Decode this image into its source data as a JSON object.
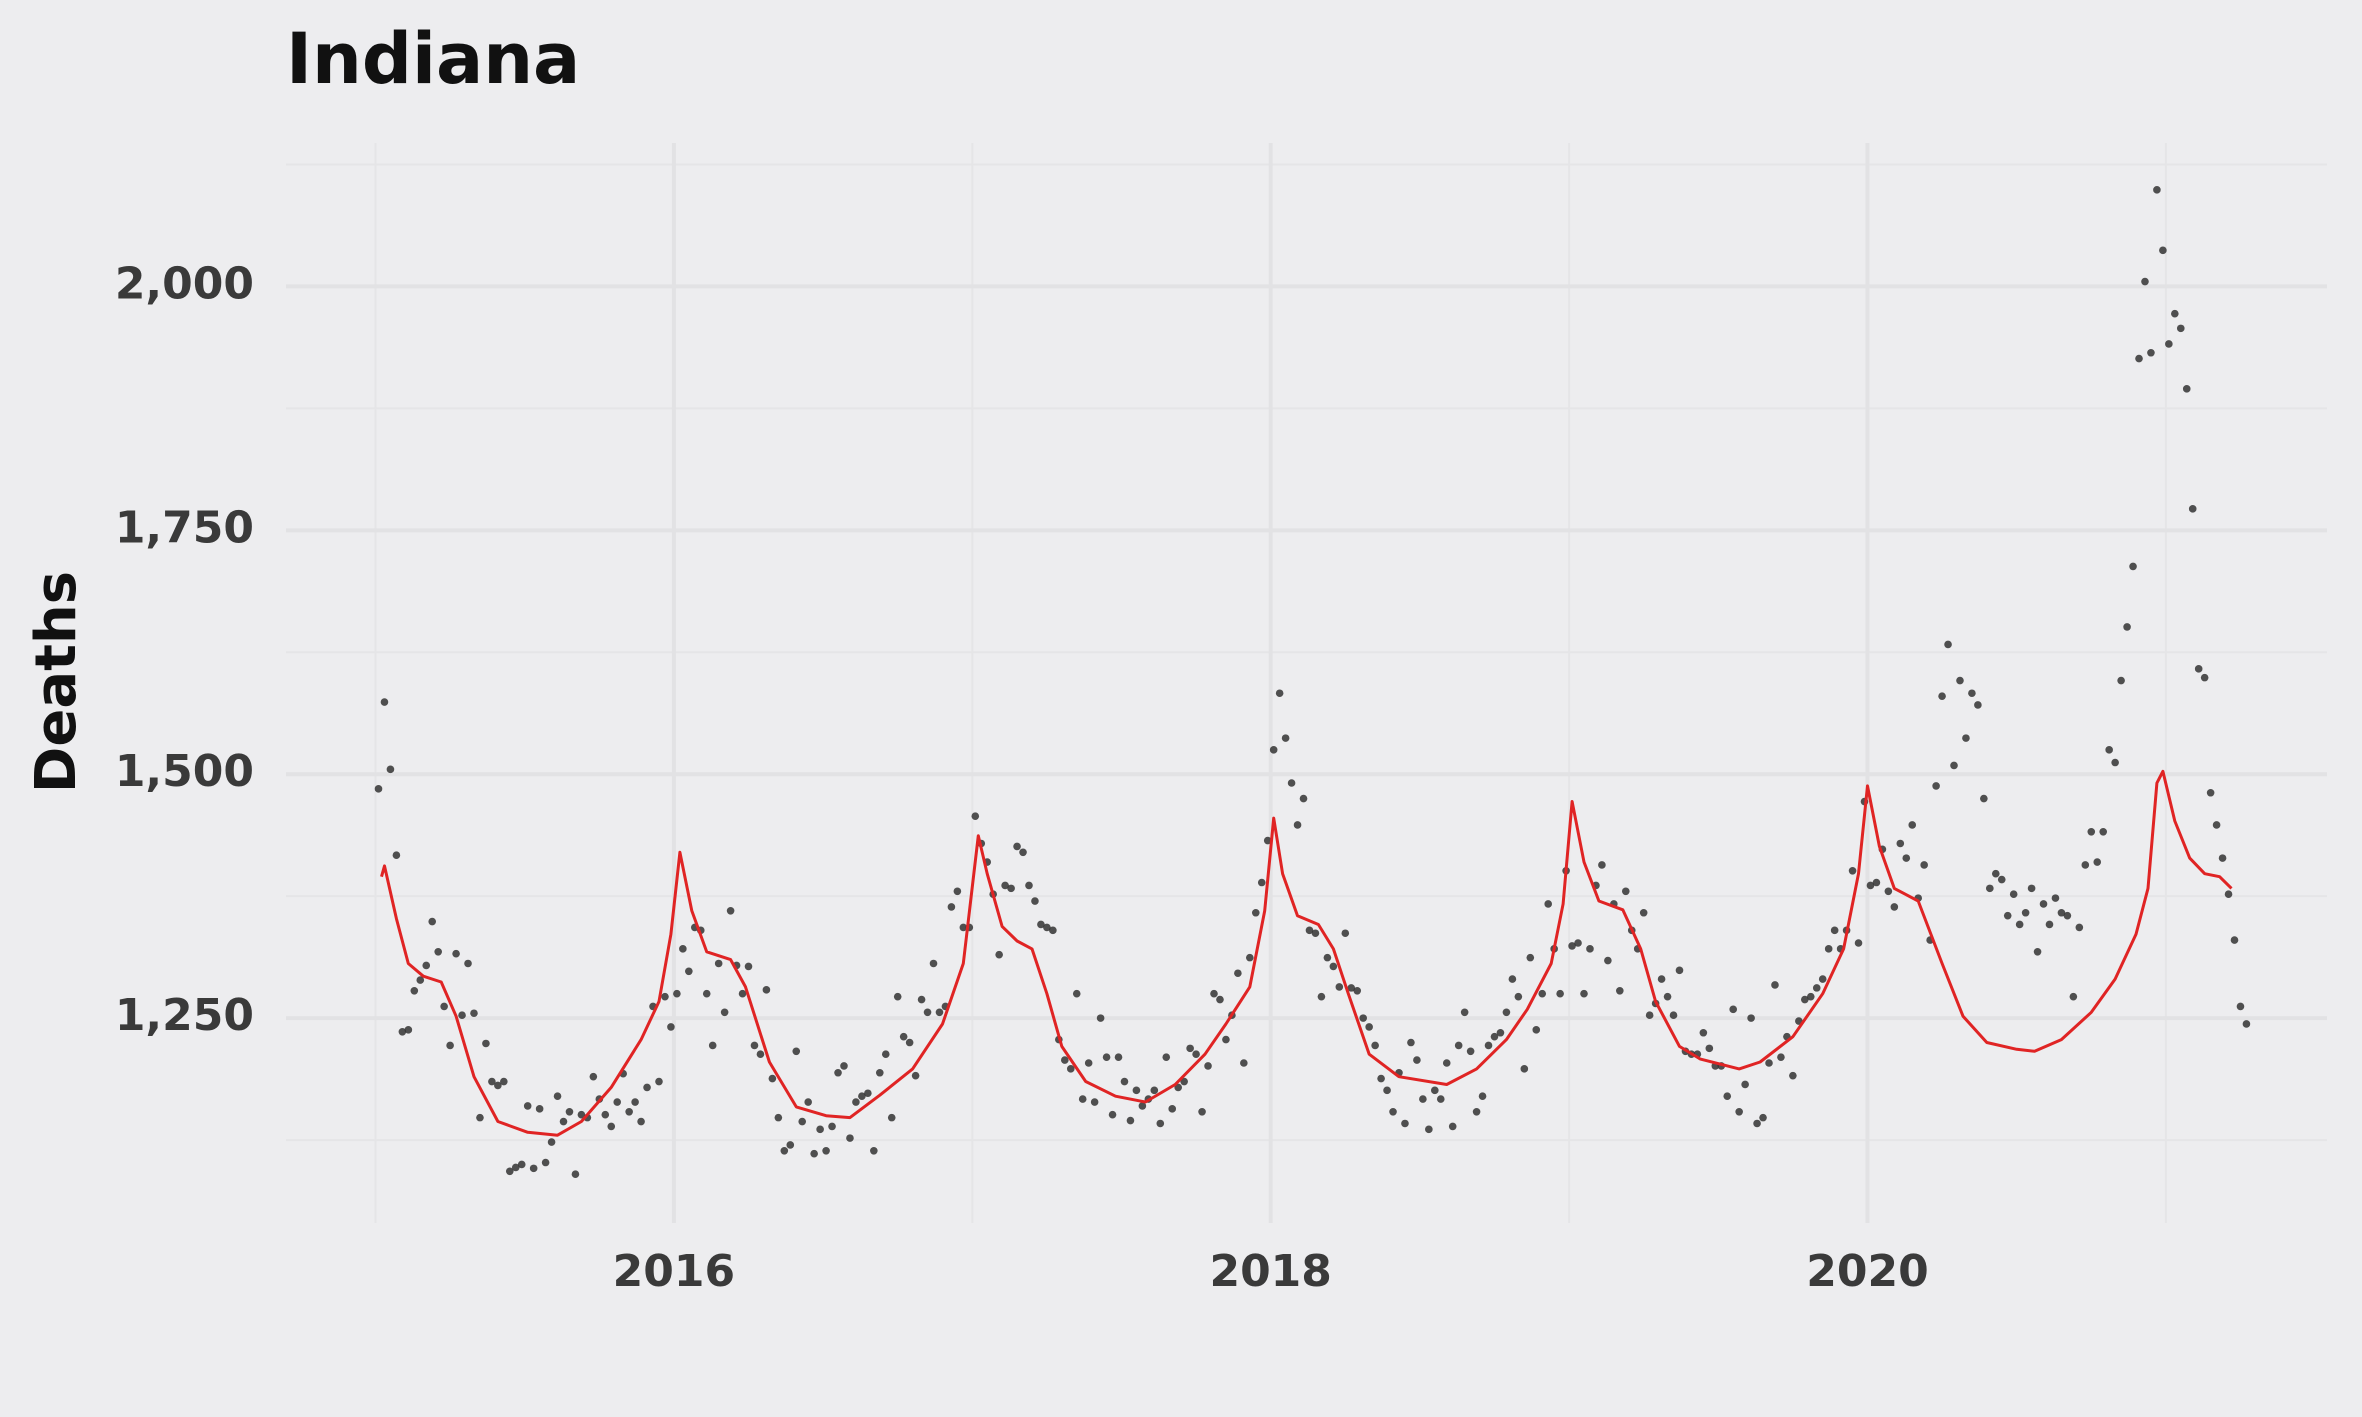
{
  "chart_data": {
    "type": "scatter",
    "title": "Indiana",
    "y_label": "Deaths",
    "xlim": [
      2014.7,
      2021.54
    ],
    "ylim": [
      1040,
      2147
    ],
    "xticks": [
      2016,
      2018,
      2020
    ],
    "yticks": [
      {
        "value": 1250,
        "label": "1,250"
      },
      {
        "value": 1500,
        "label": "1,500"
      },
      {
        "value": 1750,
        "label": "1,750"
      },
      {
        "value": 2000,
        "label": "2,000"
      }
    ],
    "xminor": [
      2015,
      2017,
      2019,
      2021
    ],
    "yminor": [
      1125,
      1375,
      1625,
      1875,
      2125
    ],
    "grid": true,
    "series": [
      {
        "type": "scatter",
        "color": "#333333",
        "x": [
          2015.01,
          2015.03,
          2015.05,
          2015.07,
          2015.09,
          2015.11,
          2015.13,
          2015.15,
          2015.17,
          2015.19,
          2015.21,
          2015.23,
          2015.25,
          2015.27,
          2015.29,
          2015.31,
          2015.33,
          2015.35,
          2015.37,
          2015.39,
          2015.41,
          2015.43,
          2015.45,
          2015.47,
          2015.49,
          2015.51,
          2015.53,
          2015.55,
          2015.57,
          2015.59,
          2015.61,
          2015.63,
          2015.65,
          2015.67,
          2015.69,
          2015.71,
          2015.73,
          2015.75,
          2015.77,
          2015.79,
          2015.81,
          2015.83,
          2015.85,
          2015.87,
          2015.89,
          2015.91,
          2015.93,
          2015.95,
          2015.97,
          2015.99,
          2016.01,
          2016.03,
          2016.05,
          2016.07,
          2016.09,
          2016.11,
          2016.13,
          2016.15,
          2016.17,
          2016.19,
          2016.21,
          2016.23,
          2016.25,
          2016.27,
          2016.29,
          2016.31,
          2016.33,
          2016.35,
          2016.37,
          2016.39,
          2016.41,
          2016.43,
          2016.45,
          2016.47,
          2016.49,
          2016.51,
          2016.53,
          2016.55,
          2016.57,
          2016.59,
          2016.61,
          2016.63,
          2016.65,
          2016.67,
          2016.69,
          2016.71,
          2016.73,
          2016.75,
          2016.77,
          2016.79,
          2016.81,
          2016.83,
          2016.85,
          2016.87,
          2016.89,
          2016.91,
          2016.93,
          2016.95,
          2016.97,
          2016.99,
          2017.01,
          2017.03,
          2017.05,
          2017.07,
          2017.09,
          2017.11,
          2017.13,
          2017.15,
          2017.17,
          2017.19,
          2017.21,
          2017.23,
          2017.25,
          2017.27,
          2017.29,
          2017.31,
          2017.33,
          2017.35,
          2017.37,
          2017.39,
          2017.41,
          2017.43,
          2017.45,
          2017.47,
          2017.49,
          2017.51,
          2017.53,
          2017.55,
          2017.57,
          2017.59,
          2017.61,
          2017.63,
          2017.65,
          2017.67,
          2017.69,
          2017.71,
          2017.73,
          2017.75,
          2017.77,
          2017.79,
          2017.81,
          2017.83,
          2017.85,
          2017.87,
          2017.89,
          2017.91,
          2017.93,
          2017.95,
          2017.97,
          2017.99,
          2018.01,
          2018.03,
          2018.05,
          2018.07,
          2018.09,
          2018.11,
          2018.13,
          2018.15,
          2018.17,
          2018.19,
          2018.21,
          2018.23,
          2018.25,
          2018.27,
          2018.29,
          2018.31,
          2018.33,
          2018.35,
          2018.37,
          2018.39,
          2018.41,
          2018.43,
          2018.45,
          2018.47,
          2018.49,
          2018.51,
          2018.53,
          2018.55,
          2018.57,
          2018.59,
          2018.61,
          2018.63,
          2018.65,
          2018.67,
          2018.69,
          2018.71,
          2018.73,
          2018.75,
          2018.77,
          2018.79,
          2018.81,
          2018.83,
          2018.85,
          2018.87,
          2018.89,
          2018.91,
          2018.93,
          2018.95,
          2018.97,
          2018.99,
          2019.01,
          2019.03,
          2019.05,
          2019.07,
          2019.09,
          2019.11,
          2019.13,
          2019.15,
          2019.17,
          2019.19,
          2019.21,
          2019.23,
          2019.25,
          2019.27,
          2019.29,
          2019.31,
          2019.33,
          2019.35,
          2019.37,
          2019.39,
          2019.41,
          2019.43,
          2019.45,
          2019.47,
          2019.49,
          2019.51,
          2019.53,
          2019.55,
          2019.57,
          2019.59,
          2019.61,
          2019.63,
          2019.65,
          2019.67,
          2019.69,
          2019.71,
          2019.73,
          2019.75,
          2019.77,
          2019.79,
          2019.81,
          2019.83,
          2019.85,
          2019.87,
          2019.89,
          2019.91,
          2019.93,
          2019.95,
          2019.97,
          2019.99,
          2020.01,
          2020.03,
          2020.05,
          2020.07,
          2020.09,
          2020.11,
          2020.13,
          2020.15,
          2020.17,
          2020.19,
          2020.21,
          2020.23,
          2020.25,
          2020.27,
          2020.29,
          2020.31,
          2020.33,
          2020.35,
          2020.37,
          2020.39,
          2020.41,
          2020.43,
          2020.45,
          2020.47,
          2020.49,
          2020.51,
          2020.53,
          2020.55,
          2020.57,
          2020.59,
          2020.61,
          2020.63,
          2020.65,
          2020.67,
          2020.69,
          2020.71,
          2020.73,
          2020.75,
          2020.77,
          2020.79,
          2020.81,
          2020.83,
          2020.85,
          2020.87,
          2020.89,
          2020.91,
          2020.93,
          2020.95,
          2020.97,
          2020.99,
          2021.01,
          2021.03,
          2021.05,
          2021.07,
          2021.09,
          2021.11,
          2021.13,
          2021.15,
          2021.17,
          2021.19,
          2021.21,
          2021.23,
          2021.25,
          2021.27
        ],
        "values": [
          1485,
          1574,
          1505,
          1417,
          1236,
          1238,
          1278,
          1289,
          1304,
          1349,
          1318,
          1262,
          1222,
          1316,
          1253,
          1306,
          1255,
          1148,
          1224,
          1185,
          1181,
          1185,
          1093,
          1097,
          1100,
          1160,
          1096,
          1157,
          1102,
          1123,
          1170,
          1144,
          1154,
          1090,
          1151,
          1148,
          1190,
          1167,
          1151,
          1139,
          1164,
          1193,
          1154,
          1164,
          1144,
          1179,
          1262,
          1185,
          1272,
          1241,
          1275,
          1321,
          1298,
          1343,
          1340,
          1275,
          1222,
          1306,
          1256,
          1360,
          1304,
          1275,
          1303,
          1222,
          1213,
          1279,
          1188,
          1148,
          1114,
          1120,
          1216,
          1144,
          1164,
          1111,
          1136,
          1114,
          1139,
          1194,
          1201,
          1127,
          1164,
          1170,
          1173,
          1114,
          1194,
          1213,
          1148,
          1272,
          1231,
          1225,
          1191,
          1269,
          1256,
          1306,
          1256,
          1262,
          1364,
          1380,
          1343,
          1343,
          1457,
          1429,
          1410,
          1377,
          1315,
          1386,
          1383,
          1426,
          1420,
          1386,
          1370,
          1346,
          1343,
          1340,
          1228,
          1207,
          1198,
          1275,
          1167,
          1204,
          1164,
          1250,
          1210,
          1151,
          1210,
          1185,
          1145,
          1176,
          1160,
          1167,
          1176,
          1142,
          1210,
          1157,
          1179,
          1185,
          1219,
          1213,
          1154,
          1201,
          1275,
          1269,
          1228,
          1253,
          1296,
          1204,
          1312,
          1358,
          1389,
          1432,
          1525,
          1583,
          1537,
          1491,
          1448,
          1475,
          1340,
          1337,
          1272,
          1312,
          1303,
          1282,
          1337,
          1281,
          1278,
          1250,
          1241,
          1222,
          1188,
          1176,
          1154,
          1194,
          1142,
          1225,
          1207,
          1167,
          1136,
          1176,
          1167,
          1204,
          1139,
          1222,
          1256,
          1216,
          1154,
          1170,
          1222,
          1231,
          1235,
          1256,
          1290,
          1272,
          1198,
          1312,
          1238,
          1275,
          1367,
          1321,
          1275,
          1401,
          1324,
          1327,
          1275,
          1321,
          1386,
          1407,
          1309,
          1367,
          1278,
          1380,
          1340,
          1321,
          1358,
          1253,
          1265,
          1290,
          1272,
          1253,
          1299,
          1216,
          1213,
          1213,
          1235,
          1219,
          1201,
          1201,
          1170,
          1259,
          1154,
          1182,
          1250,
          1142,
          1148,
          1204,
          1284,
          1210,
          1231,
          1191,
          1247,
          1269,
          1272,
          1281,
          1290,
          1321,
          1340,
          1321,
          1340,
          1401,
          1327,
          1472,
          1386,
          1389,
          1423,
          1380,
          1364,
          1429,
          1414,
          1448,
          1373,
          1407,
          1330,
          1488,
          1580,
          1633,
          1509,
          1596,
          1537,
          1583,
          1571,
          1475,
          1383,
          1398,
          1392,
          1355,
          1377,
          1346,
          1358,
          1383,
          1318,
          1367,
          1346,
          1373,
          1358,
          1355,
          1272,
          1343,
          1407,
          1441,
          1410,
          1441,
          1525,
          1512,
          1596,
          1651,
          1713,
          1926,
          2005,
          1932,
          2099,
          2037,
          1941,
          1972,
          1957,
          1895,
          1772,
          1608,
          1599,
          1481,
          1448,
          1414,
          1377,
          1330,
          1262,
          1244
        ]
      },
      {
        "type": "line",
        "color": "#e02424",
        "x": [
          2015.02,
          2015.03,
          2015.07,
          2015.11,
          2015.16,
          2015.22,
          2015.27,
          2015.33,
          2015.41,
          2015.51,
          2015.61,
          2015.69,
          2015.79,
          2015.89,
          2015.95,
          2015.99,
          2016.02,
          2016.06,
          2016.11,
          2016.19,
          2016.24,
          2016.32,
          2016.41,
          2016.51,
          2016.59,
          2016.69,
          2016.8,
          2016.9,
          2016.97,
          2017.02,
          2017.05,
          2017.1,
          2017.15,
          2017.2,
          2017.25,
          2017.3,
          2017.38,
          2017.48,
          2017.58,
          2017.68,
          2017.78,
          2017.85,
          2017.93,
          2017.98,
          2018.01,
          2018.04,
          2018.09,
          2018.16,
          2018.21,
          2018.26,
          2018.33,
          2018.43,
          2018.59,
          2018.69,
          2018.79,
          2018.86,
          2018.94,
          2018.98,
          2019.01,
          2019.05,
          2019.1,
          2019.18,
          2019.24,
          2019.29,
          2019.37,
          2019.44,
          2019.57,
          2019.64,
          2019.75,
          2019.85,
          2019.92,
          2019.97,
          2020.0,
          2020.04,
          2020.09,
          2020.17,
          2020.25,
          2020.32,
          2020.4,
          2020.5,
          2020.56,
          2020.65,
          2020.75,
          2020.83,
          2020.9,
          2020.94,
          2020.97,
          2020.99,
          2021.03,
          2021.08,
          2021.13,
          2021.18,
          2021.22
        ],
        "values": [
          1395,
          1406,
          1352,
          1306,
          1293,
          1287,
          1252,
          1190,
          1144,
          1133,
          1130,
          1144,
          1179,
          1228,
          1267,
          1336,
          1420,
          1360,
          1318,
          1310,
          1282,
          1205,
          1159,
          1150,
          1148,
          1171,
          1198,
          1244,
          1306,
          1437,
          1398,
          1344,
          1329,
          1321,
          1275,
          1221,
          1185,
          1170,
          1164,
          1182,
          1213,
          1244,
          1282,
          1360,
          1455,
          1398,
          1355,
          1346,
          1321,
          1275,
          1213,
          1190,
          1182,
          1198,
          1228,
          1259,
          1306,
          1367,
          1472,
          1410,
          1370,
          1361,
          1321,
          1267,
          1221,
          1208,
          1198,
          1205,
          1231,
          1275,
          1321,
          1398,
          1488,
          1426,
          1383,
          1370,
          1306,
          1252,
          1225,
          1218,
          1216,
          1228,
          1256,
          1290,
          1336,
          1383,
          1491,
          1503,
          1452,
          1414,
          1398,
          1395,
          1383
        ]
      }
    ]
  }
}
